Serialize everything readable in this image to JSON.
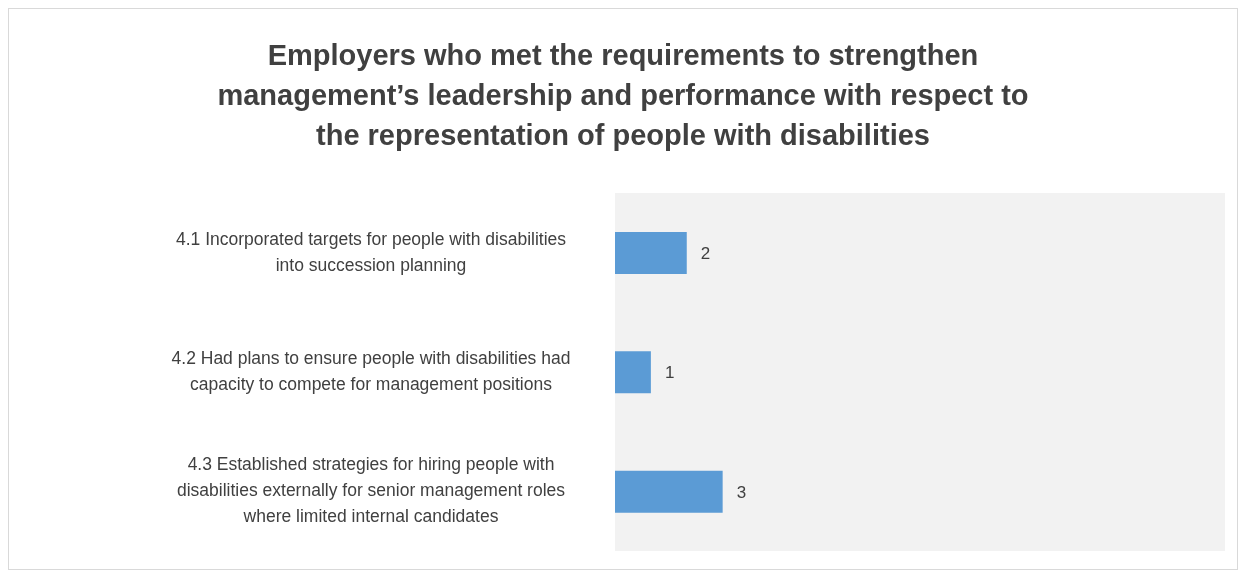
{
  "chart_data": {
    "type": "bar",
    "orientation": "horizontal",
    "title": "Employers who met the requirements to strengthen management’s leadership and performance with respect to the representation of people with disabilities",
    "categories": [
      "4.1 Incorporated targets for people with disabilities into succession planning",
      "4.2 Had plans to ensure people with disabilities had capacity to compete for management positions",
      "4.3 Established strategies for hiring people with disabilities externally for senior management roles where limited internal candidates"
    ],
    "values": [
      2,
      1,
      3
    ],
    "color": "#5b9bd5",
    "xlim": [
      0,
      17
    ],
    "data_labels": true,
    "tick_labels": "y"
  }
}
